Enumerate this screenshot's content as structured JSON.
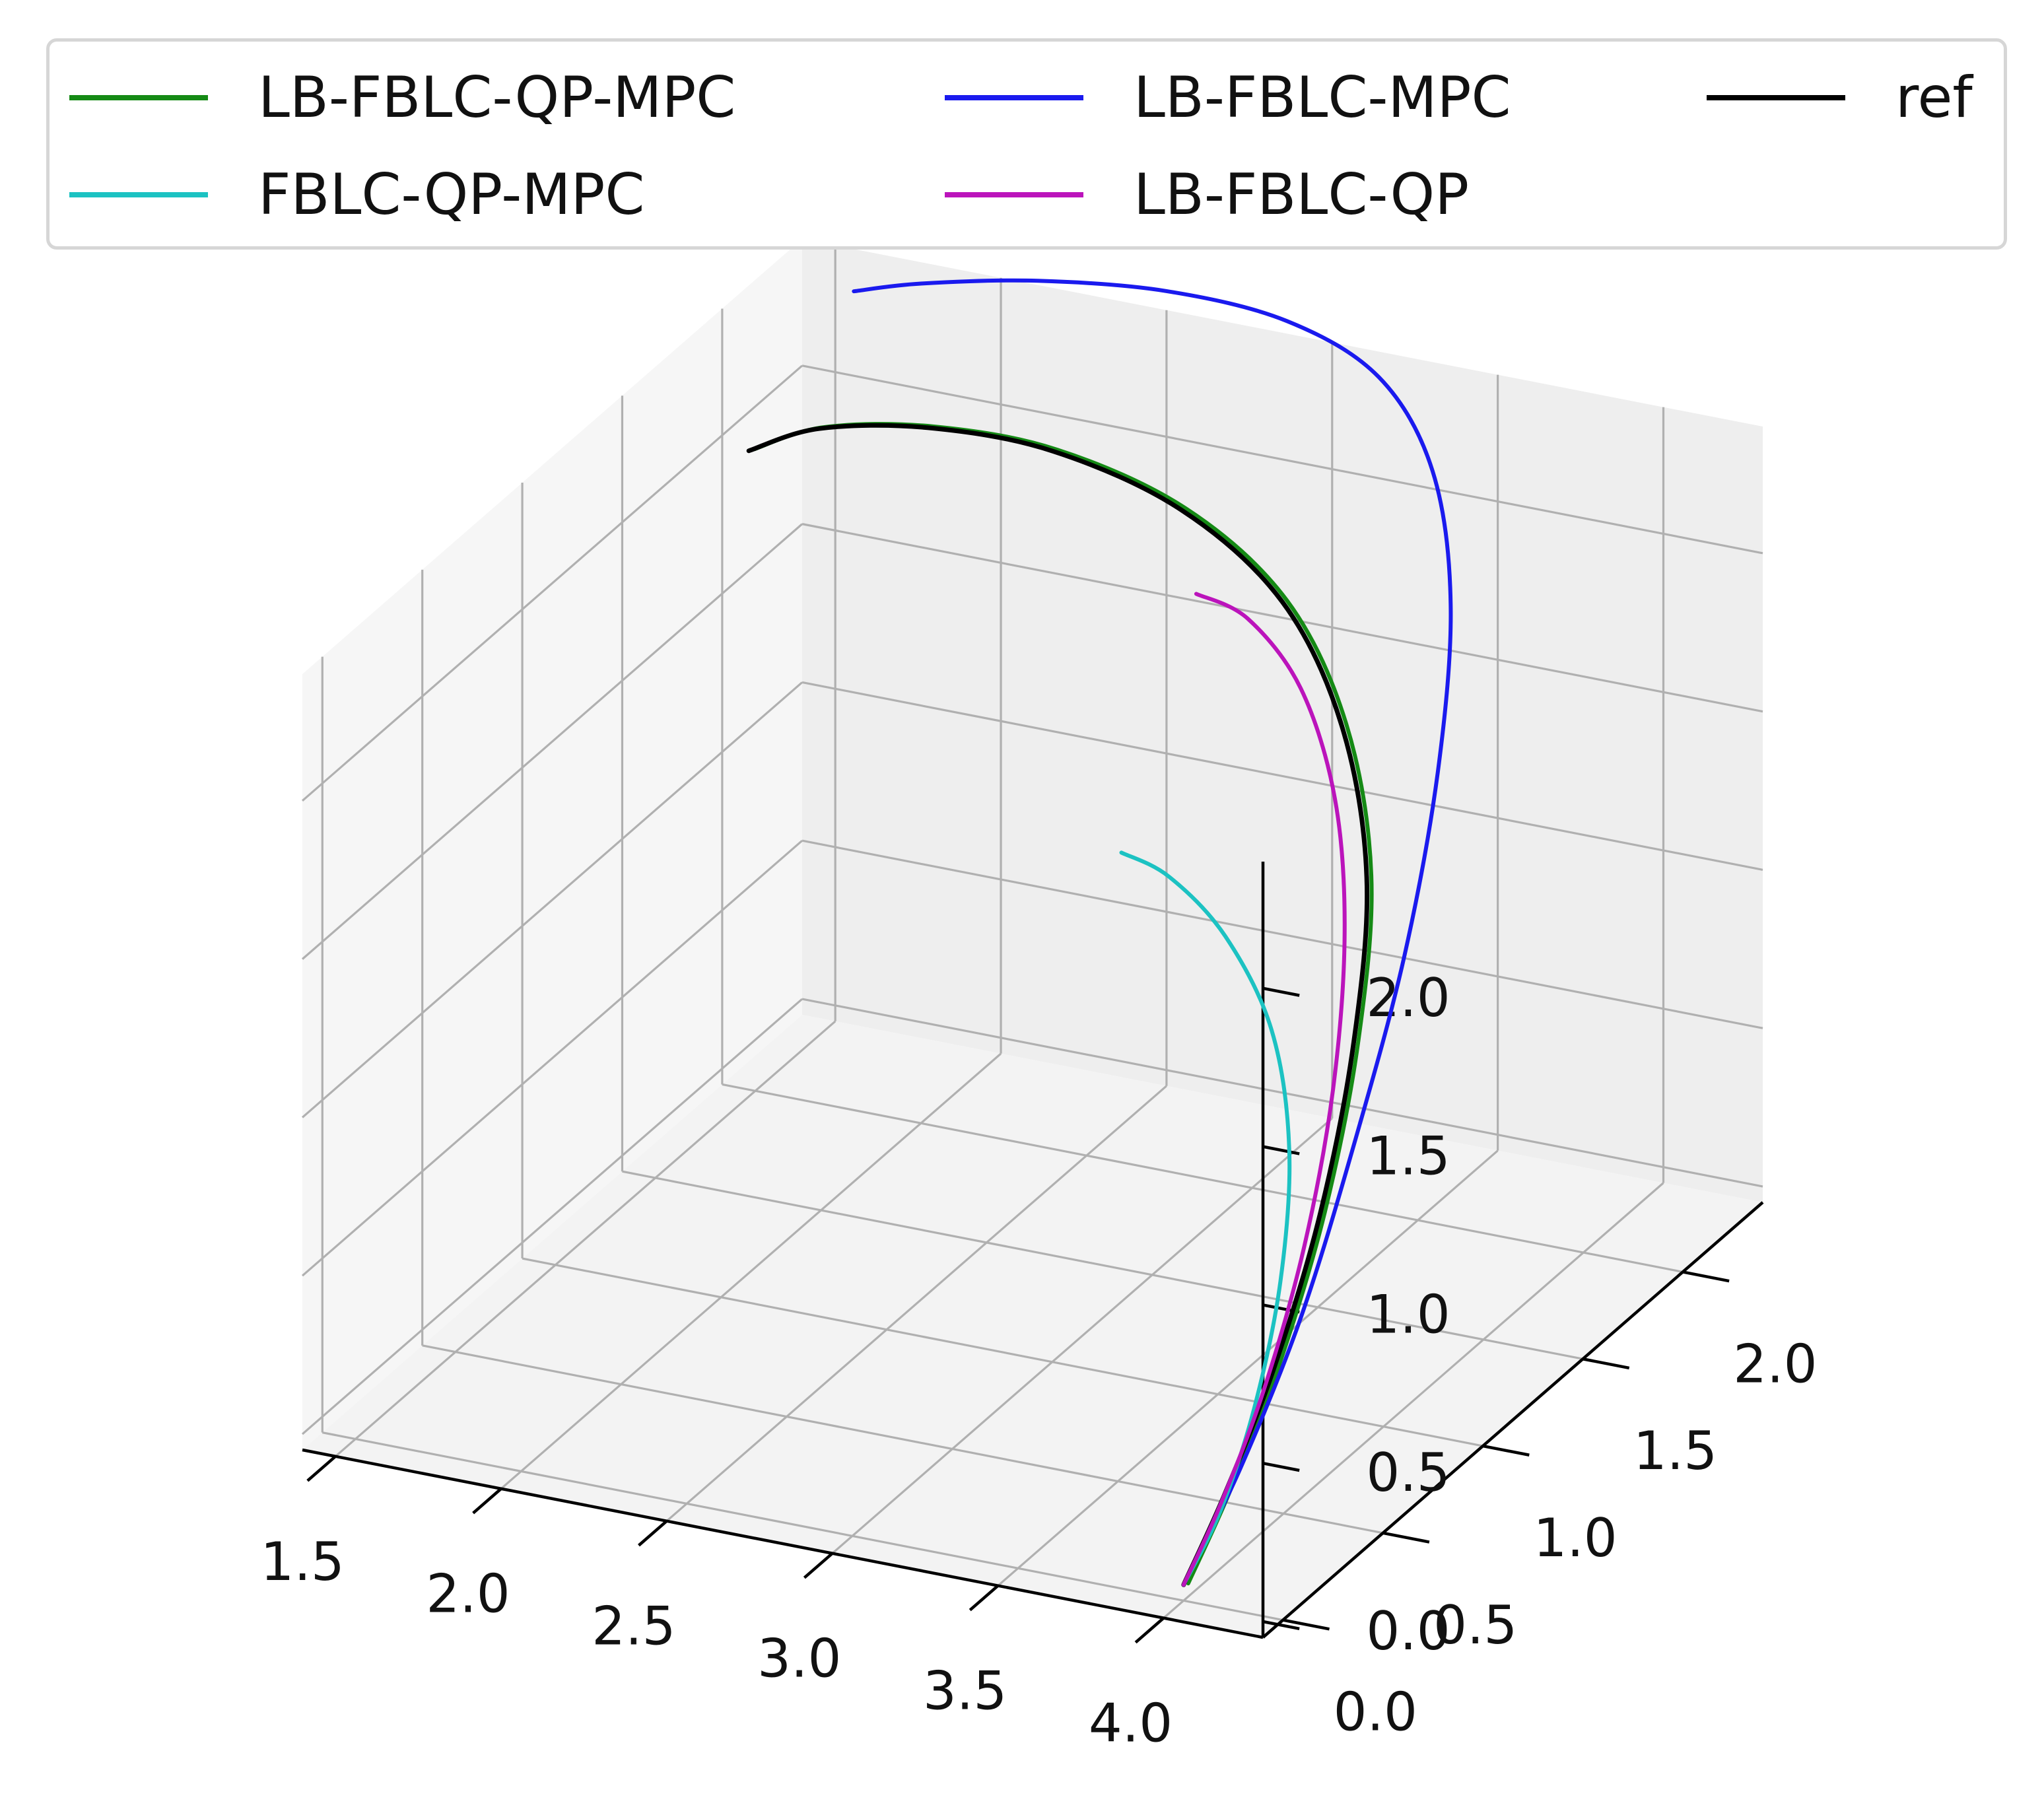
{
  "chart_data": {
    "type": "line3d",
    "title": "",
    "xlabel": "",
    "ylabel": "",
    "zlabel": "",
    "x_ticks": [
      "1.5",
      "2.0",
      "2.5",
      "3.0",
      "3.5",
      "4.0"
    ],
    "y_ticks": [
      "0.0",
      "0.5",
      "1.0",
      "1.5",
      "2.0"
    ],
    "z_ticks": [
      "0.0",
      "0.5",
      "1.0",
      "1.5",
      "2.0"
    ],
    "xlim": [
      1.4,
      4.3
    ],
    "ylim": [
      -0.1,
      2.4
    ],
    "zlim": [
      -0.05,
      2.4
    ],
    "grid": true,
    "legend_position": "top",
    "series": [
      {
        "name": "LB-FBLC-QP-MPC",
        "color": "#158a15",
        "x": [
          4.0,
          3.99,
          3.97,
          3.93,
          3.85,
          3.72,
          3.5,
          3.2,
          2.8,
          2.35,
          1.95,
          1.62,
          1.42
        ],
        "y": [
          0.0,
          0.22,
          0.5,
          0.8,
          1.1,
          1.38,
          1.62,
          1.82,
          1.98,
          2.08,
          2.12,
          2.12,
          2.1
        ],
        "z": [
          0.0,
          0.16,
          0.4,
          0.72,
          1.08,
          1.42,
          1.72,
          1.94,
          2.06,
          2.1,
          2.07,
          2.0,
          1.9
        ]
      },
      {
        "name": "LB-FBLC-MPC",
        "color": "#1a1aee",
        "x": [
          4.0,
          3.99,
          3.98,
          3.96,
          3.93,
          3.85,
          3.72,
          3.52,
          3.25,
          2.9,
          2.5,
          2.1,
          1.75,
          1.55
        ],
        "y": [
          0.0,
          0.3,
          0.62,
          0.92,
          1.22,
          1.52,
          1.8,
          2.04,
          2.22,
          2.34,
          2.4,
          2.42,
          2.42,
          2.41
        ],
        "z": [
          0.0,
          0.2,
          0.5,
          0.88,
          1.3,
          1.7,
          2.05,
          2.3,
          2.44,
          2.48,
          2.46,
          2.4,
          2.32,
          2.26
        ]
      },
      {
        "name": "ref",
        "color": "#000000",
        "x": [
          4.0,
          3.99,
          3.97,
          3.93,
          3.85,
          3.72,
          3.5,
          3.2,
          2.8,
          2.35,
          1.95,
          1.62,
          1.42
        ],
        "y": [
          0.0,
          0.22,
          0.5,
          0.8,
          1.1,
          1.38,
          1.62,
          1.82,
          1.98,
          2.08,
          2.12,
          2.12,
          2.1
        ],
        "z": [
          0.0,
          0.16,
          0.4,
          0.72,
          1.08,
          1.42,
          1.72,
          1.94,
          2.06,
          2.1,
          2.07,
          2.0,
          1.9
        ]
      },
      {
        "name": "FBLC-QP-MPC",
        "color": "#1cc2c2",
        "x": [
          4.0,
          3.99,
          3.96,
          3.9,
          3.8,
          3.65,
          3.45,
          3.25,
          3.1
        ],
        "y": [
          0.0,
          0.2,
          0.42,
          0.65,
          0.86,
          1.02,
          1.12,
          1.17,
          1.18
        ],
        "z": [
          0.0,
          0.12,
          0.32,
          0.58,
          0.86,
          1.12,
          1.32,
          1.44,
          1.48
        ]
      },
      {
        "name": "LB-FBLC-QP",
        "color": "#bb14bb",
        "x": [
          4.0,
          3.99,
          3.97,
          3.93,
          3.86,
          3.75,
          3.6,
          3.4,
          3.18,
          3.0
        ],
        "y": [
          0.0,
          0.2,
          0.45,
          0.72,
          0.98,
          1.22,
          1.42,
          1.58,
          1.68,
          1.72
        ],
        "z": [
          0.0,
          0.14,
          0.36,
          0.66,
          1.0,
          1.34,
          1.62,
          1.84,
          1.96,
          1.98
        ]
      }
    ]
  }
}
